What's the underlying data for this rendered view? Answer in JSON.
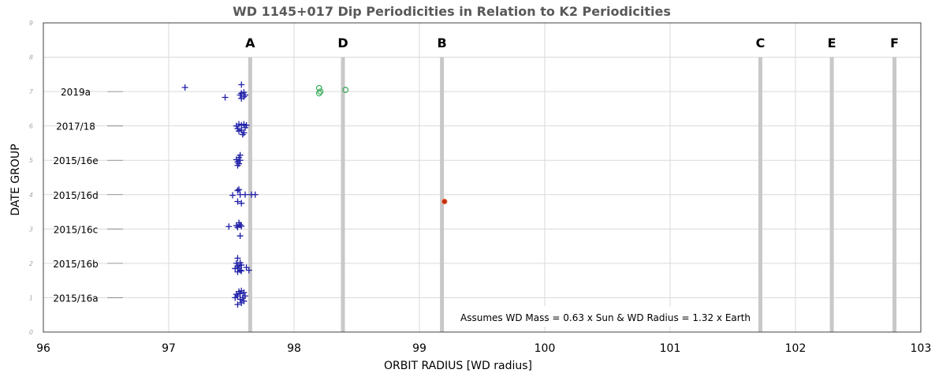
{
  "chart_data": {
    "type": "scatter",
    "title": "WD 1145+017 Dip Periodicities in Relation to K2 Periodicities",
    "xlabel": "ORBIT RADIUS [WD radius]",
    "ylabel": "DATE GROUP",
    "xlim": [
      96,
      103
    ],
    "ylim": [
      0,
      9
    ],
    "xticks": [
      "96",
      "97",
      "98",
      "99",
      "100",
      "101",
      "102",
      "103"
    ],
    "yticks": [
      "0",
      "1",
      "2",
      "3",
      "4",
      "5",
      "6",
      "7",
      "8",
      "9"
    ],
    "grid": true,
    "groups": [
      {
        "label": "2015/16a",
        "y": 1
      },
      {
        "label": "2015/16b",
        "y": 2
      },
      {
        "label": "2015/16c",
        "y": 3
      },
      {
        "label": "2015/16d",
        "y": 4
      },
      {
        "label": "2015/16e",
        "y": 5
      },
      {
        "label": "2017/18",
        "y": 6
      },
      {
        "label": "2019a",
        "y": 7
      }
    ],
    "k2_lines": [
      {
        "label": "A",
        "x": 97.65
      },
      {
        "label": "D",
        "x": 98.39
      },
      {
        "label": "B",
        "x": 99.18
      },
      {
        "label": "C",
        "x": 101.72
      },
      {
        "label": "E",
        "x": 102.29
      },
      {
        "label": "F",
        "x": 102.79
      }
    ],
    "series": [
      {
        "marker": "plus",
        "color": "#1f1fa8",
        "points": [
          [
            97.55,
            0.8
          ],
          [
            97.58,
            0.85
          ],
          [
            97.6,
            0.9
          ],
          [
            97.57,
            0.95
          ],
          [
            97.53,
            1.0
          ],
          [
            97.59,
            1.0
          ],
          [
            97.55,
            1.05
          ],
          [
            97.61,
            1.05
          ],
          [
            97.54,
            1.1
          ],
          [
            97.57,
            1.12
          ],
          [
            97.6,
            1.15
          ],
          [
            97.56,
            1.18
          ],
          [
            97.58,
            1.2
          ],
          [
            97.55,
            1.75
          ],
          [
            97.58,
            1.78
          ],
          [
            97.57,
            1.8
          ],
          [
            97.64,
            1.8
          ],
          [
            97.53,
            1.85
          ],
          [
            97.56,
            1.88
          ],
          [
            97.62,
            1.88
          ],
          [
            97.55,
            1.92
          ],
          [
            97.58,
            1.95
          ],
          [
            97.54,
            2.0
          ],
          [
            97.57,
            2.02
          ],
          [
            97.55,
            2.15
          ],
          [
            97.57,
            2.8
          ],
          [
            97.48,
            3.07
          ],
          [
            97.55,
            3.05
          ],
          [
            97.58,
            3.08
          ],
          [
            97.54,
            3.1
          ],
          [
            97.57,
            3.12
          ],
          [
            97.56,
            3.18
          ],
          [
            97.58,
            3.75
          ],
          [
            97.55,
            3.8
          ],
          [
            97.51,
            3.98
          ],
          [
            97.57,
            4.0
          ],
          [
            97.61,
            4.0
          ],
          [
            97.66,
            4.0
          ],
          [
            97.69,
            4.0
          ],
          [
            97.55,
            4.12
          ],
          [
            97.56,
            4.15
          ],
          [
            97.55,
            4.85
          ],
          [
            97.56,
            4.9
          ],
          [
            97.55,
            4.95
          ],
          [
            97.57,
            5.0
          ],
          [
            97.54,
            5.02
          ],
          [
            97.56,
            5.08
          ],
          [
            97.57,
            5.15
          ],
          [
            97.59,
            5.75
          ],
          [
            97.6,
            5.8
          ],
          [
            97.56,
            5.85
          ],
          [
            97.58,
            5.88
          ],
          [
            97.55,
            5.92
          ],
          [
            97.61,
            5.95
          ],
          [
            97.54,
            6.0
          ],
          [
            97.58,
            6.02
          ],
          [
            97.62,
            6.02
          ],
          [
            97.56,
            6.05
          ],
          [
            97.6,
            6.05
          ],
          [
            97.13,
            7.12
          ],
          [
            97.45,
            6.83
          ],
          [
            97.58,
            6.8
          ],
          [
            97.6,
            6.85
          ],
          [
            97.57,
            6.9
          ],
          [
            97.61,
            6.9
          ],
          [
            97.58,
            6.95
          ],
          [
            97.6,
            6.98
          ],
          [
            97.58,
            7.2
          ]
        ]
      },
      {
        "marker": "open-circle",
        "color": "#33aa55",
        "points": [
          [
            98.2,
            7.1
          ],
          [
            98.21,
            7.0
          ],
          [
            98.2,
            6.95
          ],
          [
            98.41,
            7.05
          ]
        ]
      },
      {
        "marker": "filled-circle",
        "color": "#c03010",
        "points": [
          [
            99.2,
            3.8
          ]
        ]
      }
    ],
    "annotation": "Assumes WD Mass = 0.63 x Sun & WD Radius  = 1.32 x Earth"
  }
}
